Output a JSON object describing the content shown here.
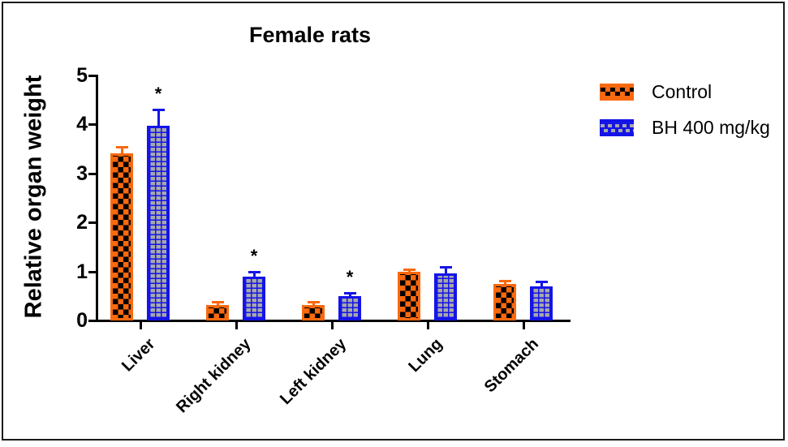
{
  "title": "Female rats",
  "colors": {
    "control_orange": "#F9690F",
    "bh_blue": "#1414E8",
    "pattern_gray": "#A8A8A8",
    "axis_black": "#000000"
  },
  "significance_symbol": "*",
  "legend": {
    "items": [
      {
        "label": "Control",
        "swatch_icon": "orange-checker-swatch"
      },
      {
        "label": "BH 400 mg/kg",
        "swatch_icon": "blue-brick-swatch"
      }
    ]
  },
  "chart_data": {
    "type": "bar",
    "title": "Female rats",
    "xlabel": "",
    "ylabel": "Relative organ weight",
    "ylim": [
      0,
      5
    ],
    "yticks": [
      0,
      1,
      2,
      3,
      4,
      5
    ],
    "grid": false,
    "legend_position": "top-right",
    "error_bars": "upper SEM, colored per series",
    "categories": [
      "Liver",
      "Right kidney",
      "Left kidney",
      "Lung",
      "Stomach"
    ],
    "series": [
      {
        "name": "Control",
        "values": [
          3.4,
          0.3,
          0.3,
          0.97,
          0.73
        ],
        "errors": [
          0.15,
          0.08,
          0.08,
          0.08,
          0.08
        ],
        "significant": [
          false,
          false,
          false,
          false,
          false
        ]
      },
      {
        "name": "BH 400 mg/kg",
        "values": [
          3.95,
          0.87,
          0.48,
          0.94,
          0.68
        ],
        "errors": [
          0.35,
          0.13,
          0.09,
          0.16,
          0.12
        ],
        "significant": [
          true,
          true,
          true,
          false,
          false
        ]
      }
    ]
  }
}
